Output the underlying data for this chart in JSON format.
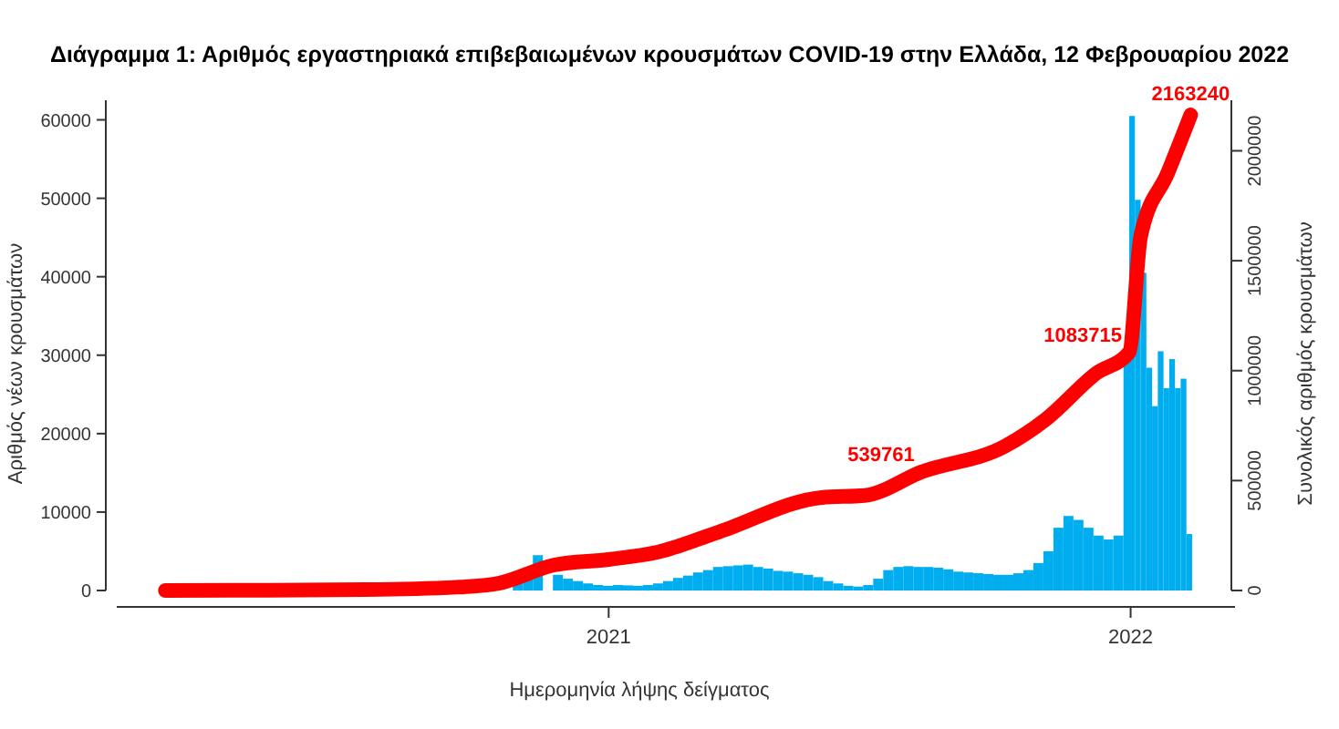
{
  "chart_data": {
    "type": "bar",
    "title": "Διάγραμμα 1: Αριθμός εργαστηριακά επιβεβαιωμένων κρουσμάτων COVID-19 στην Ελλάδα, 12 Φεβρουαρίου 2022",
    "xlabel": "Ημερομηνία λήψης δείγματος",
    "ylabel": "Αριθμός νέων κρουσμάτων",
    "y2label": "Συνολικός αριθμός κρουσμάτων",
    "xlim": [
      "2020-01-23",
      "2022-03-15"
    ],
    "xticks": [
      {
        "value": "2021-01-01",
        "label": "2021"
      },
      {
        "value": "2022-01-01",
        "label": "2022"
      }
    ],
    "ylim": [
      0,
      62500
    ],
    "yticks": [
      0,
      10000,
      20000,
      30000,
      40000,
      50000,
      60000
    ],
    "y2lim": [
      0,
      2230000
    ],
    "y2ticks": [
      0,
      500000,
      1000000,
      1500000,
      2000000
    ],
    "grid": false,
    "series": [
      {
        "color": "#00aeef",
        "x": [
          "2020-10-26",
          "2020-11-02",
          "2020-11-09",
          "2020-11-16",
          "2020-11-23",
          "2020-11-30",
          "2020-12-07",
          "2020-12-14",
          "2020-12-21",
          "2020-12-28",
          "2021-01-04",
          "2021-01-11",
          "2021-01-18",
          "2021-01-25",
          "2021-02-01",
          "2021-02-08",
          "2021-02-15",
          "2021-02-22",
          "2021-03-01",
          "2021-03-08",
          "2021-03-15",
          "2021-03-22",
          "2021-03-29",
          "2021-04-05",
          "2021-04-12",
          "2021-04-19",
          "2021-04-26",
          "2021-05-03",
          "2021-05-10",
          "2021-05-17",
          "2021-05-24",
          "2021-05-31",
          "2021-06-07",
          "2021-06-14",
          "2021-06-21",
          "2021-06-28",
          "2021-07-05",
          "2021-07-12",
          "2021-07-19",
          "2021-07-26",
          "2021-08-02",
          "2021-08-09",
          "2021-08-16",
          "2021-08-23",
          "2021-08-30",
          "2021-09-06",
          "2021-09-13",
          "2021-09-20",
          "2021-09-27",
          "2021-10-04",
          "2021-10-11",
          "2021-10-18",
          "2021-10-25",
          "2021-11-01",
          "2021-11-08",
          "2021-11-15",
          "2021-11-22",
          "2021-11-29",
          "2021-12-06",
          "2021-12-13",
          "2021-12-20",
          "2021-12-27",
          "2021-12-31",
          "2022-01-04",
          "2022-01-08",
          "2022-01-12",
          "2022-01-16",
          "2022-01-20",
          "2022-01-24",
          "2022-01-28",
          "2022-02-01",
          "2022-02-05",
          "2022-02-09"
        ],
        "values": [
          1200,
          2000,
          4500,
          null,
          2000,
          1500,
          1200,
          900,
          700,
          600,
          700,
          650,
          600,
          700,
          900,
          1200,
          1600,
          1900,
          2300,
          2600,
          3000,
          3100,
          3200,
          3300,
          3000,
          2800,
          2500,
          2400,
          2200,
          2000,
          1700,
          1200,
          900,
          600,
          500,
          700,
          1500,
          2600,
          3000,
          3100,
          3000,
          3000,
          2900,
          2700,
          2400,
          2300,
          2200,
          2100,
          2000,
          2000,
          2200,
          2600,
          3500,
          5000,
          8000,
          9500,
          9000,
          8000,
          7000,
          6500,
          7000,
          29500,
          60500,
          49800,
          40500,
          28400,
          23500,
          30500,
          25800,
          29500,
          25800,
          27000,
          7200
        ]
      },
      {
        "type": "line",
        "axis": "y2",
        "color": "#ff0000",
        "x": [
          "2020-02-26",
          "2020-07-15",
          "2020-09-17",
          "2020-10-16",
          "2020-11-24",
          "2021-01-01",
          "2021-02-04",
          "2021-03-19",
          "2021-05-30",
          "2021-06-29",
          "2021-08-08",
          "2021-10-05",
          "2021-11-03",
          "2021-12-08",
          "2021-12-31",
          "2022-01-08",
          "2022-01-27",
          "2022-02-12"
        ],
        "values": [
          0,
          4000,
          15000,
          33000,
          116000,
          141000,
          174000,
          266000,
          423000,
          432000,
          539761,
          656000,
          780000,
          988000,
          1083715,
          1610000,
          1900000,
          2163240
        ],
        "value_labels": [
          null,
          null,
          null,
          null,
          null,
          null,
          null,
          null,
          null,
          null,
          "539761",
          null,
          null,
          null,
          "1083715",
          null,
          null,
          "2163240"
        ]
      }
    ]
  }
}
